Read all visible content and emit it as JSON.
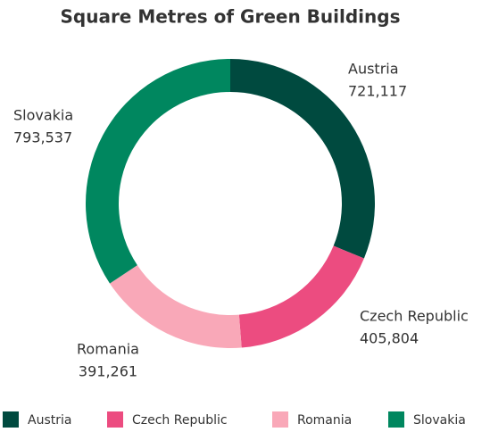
{
  "chart_data": {
    "type": "donut",
    "title": "Square Metres of Green Buildings",
    "categories": [
      "Austria",
      "Czech Republic",
      "Romania",
      "Slovakia"
    ],
    "values": [
      721117,
      405804,
      391261,
      793537
    ],
    "value_labels": [
      "721,117",
      "405,804",
      "391,261",
      "793,537"
    ],
    "colors": [
      "#004a3f",
      "#ec4c80",
      "#f9a8b8",
      "#00875f"
    ],
    "legend": "bottom"
  }
}
